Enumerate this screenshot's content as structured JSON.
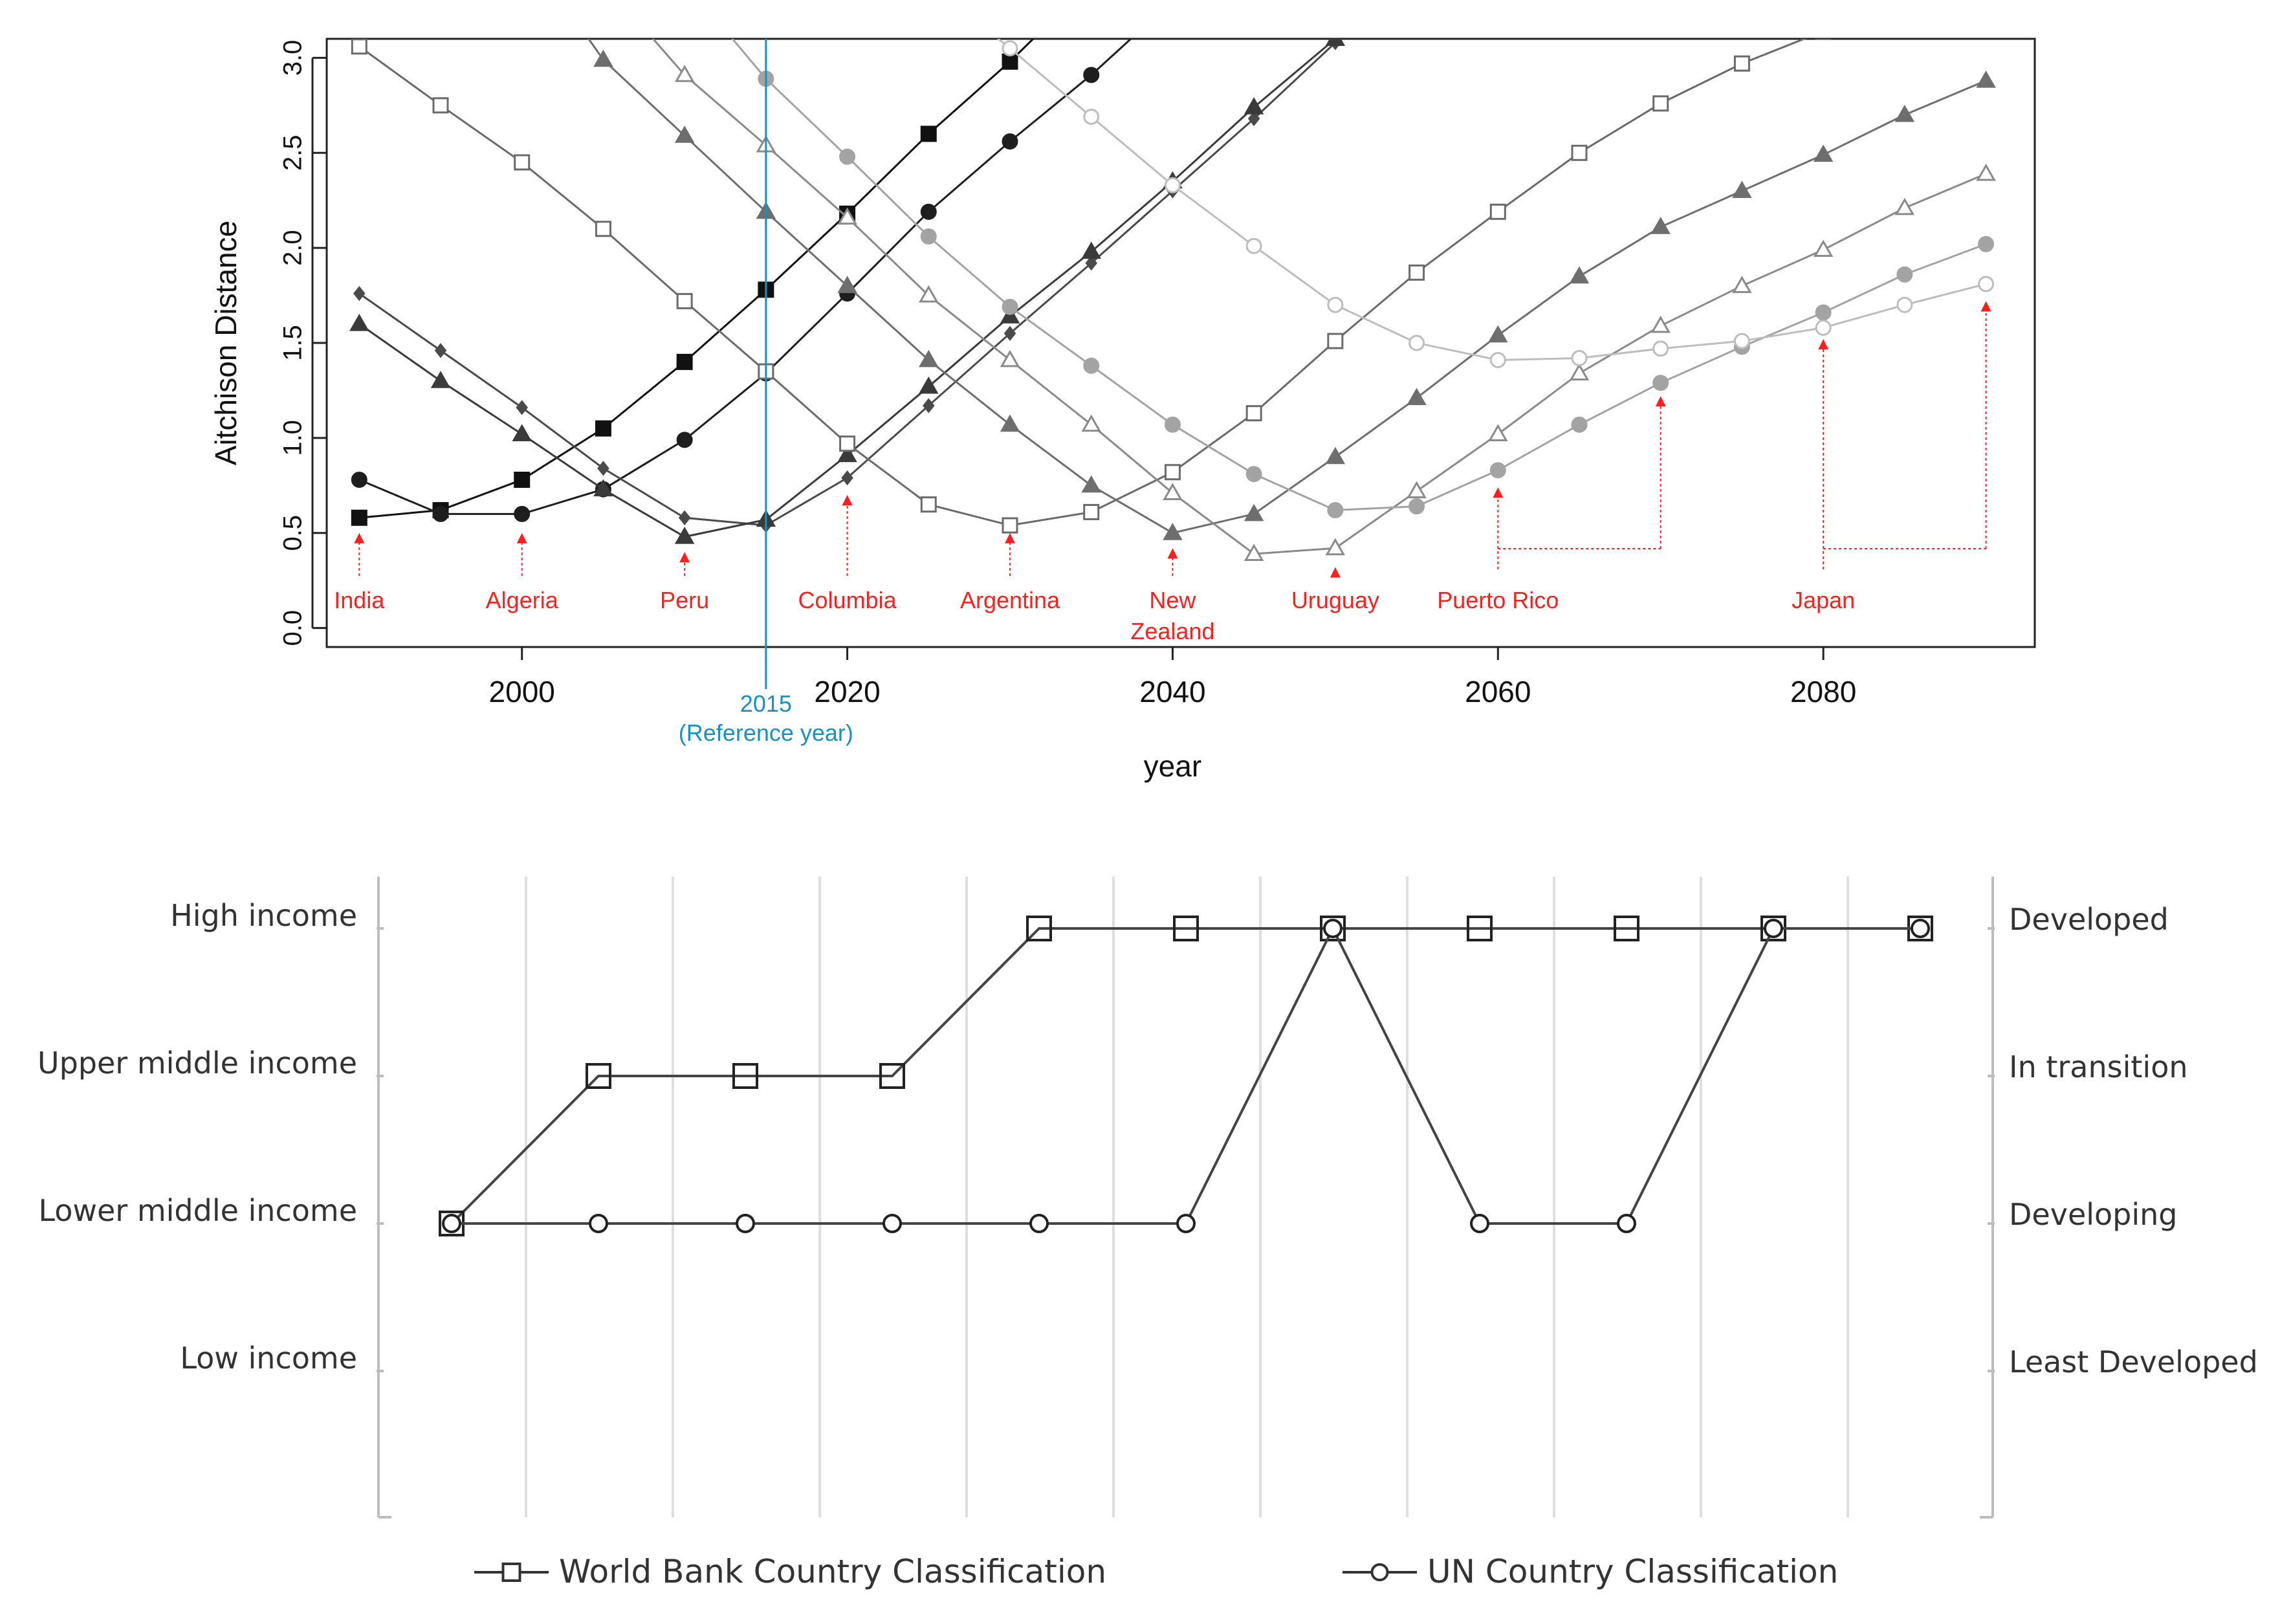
{
  "chart_data": [
    {
      "type": "line",
      "xlabel": "year",
      "ylabel": "Aitchison Distance",
      "xlim": [
        1988,
        2093
      ],
      "ylim": [
        -0.1,
        3.1
      ],
      "x_ticks": [
        "2000",
        "2020",
        "2040",
        "2060",
        "2080"
      ],
      "y_ticks": [
        "0.0",
        "0.5",
        "1.0",
        "1.5",
        "2.0",
        "2.5",
        "3.0"
      ],
      "reference_line": {
        "x": 2015,
        "label": "2015",
        "sublabel": "(Reference year)",
        "color": "#1a8fc4"
      },
      "x": [
        1990,
        1995,
        2000,
        2005,
        2010,
        2015,
        2020,
        2025,
        2030,
        2035,
        2040,
        2045,
        2050,
        2055,
        2060,
        2065,
        2070,
        2075,
        2080,
        2085,
        2090
      ],
      "series": [
        {
          "marker": "square-filled",
          "color": "#111111",
          "values": [
            0.58,
            0.62,
            0.78,
            1.05,
            1.4,
            1.78,
            2.18,
            2.6,
            2.98,
            3.4,
            null,
            null,
            null,
            null,
            null,
            null,
            null,
            null,
            null,
            null,
            null
          ]
        },
        {
          "marker": "circle-filled",
          "color": "#1e1e1e",
          "values": [
            0.78,
            0.6,
            0.6,
            0.73,
            0.99,
            1.34,
            1.76,
            2.19,
            2.56,
            2.91,
            3.3,
            null,
            null,
            null,
            null,
            null,
            null,
            null,
            null,
            null,
            null
          ]
        },
        {
          "marker": "diamond-filled",
          "color": "#4a4a4a",
          "values": [
            1.76,
            1.46,
            1.16,
            0.84,
            0.58,
            0.54,
            0.79,
            1.17,
            1.55,
            1.92,
            2.3,
            2.68,
            3.08,
            3.4,
            null,
            null,
            null,
            null,
            null,
            null,
            null
          ]
        },
        {
          "marker": "triangle-filled",
          "color": "#3a3a3a",
          "values": [
            1.6,
            1.3,
            1.02,
            0.73,
            0.48,
            0.57,
            0.91,
            1.27,
            1.64,
            1.98,
            2.35,
            2.74,
            3.1,
            3.4,
            null,
            null,
            null,
            null,
            null,
            null,
            null
          ]
        },
        {
          "marker": "square-open",
          "color": "#6a6a6a",
          "values": [
            3.06,
            2.75,
            2.45,
            2.1,
            1.72,
            1.35,
            0.97,
            0.65,
            0.54,
            0.61,
            0.82,
            1.13,
            1.51,
            1.87,
            2.19,
            2.5,
            2.76,
            2.97,
            3.14,
            null,
            null
          ]
        },
        {
          "marker": "triangle-filled",
          "color": "#6e6e6e",
          "values": [
            null,
            null,
            3.6,
            2.99,
            2.59,
            2.19,
            1.8,
            1.41,
            1.07,
            0.75,
            0.5,
            0.6,
            0.9,
            1.21,
            1.54,
            1.85,
            2.11,
            2.3,
            2.49,
            2.7,
            2.88
          ]
        },
        {
          "marker": "triangle-open",
          "color": "#8a8a8a",
          "values": [
            null,
            null,
            null,
            3.4,
            2.91,
            2.54,
            2.16,
            1.75,
            1.41,
            1.07,
            0.71,
            0.39,
            0.42,
            0.72,
            1.02,
            1.34,
            1.59,
            1.8,
            1.99,
            2.21,
            2.39
          ]
        },
        {
          "marker": "circle-filled",
          "color": "#a3a3a3",
          "values": [
            null,
            null,
            null,
            null,
            3.4,
            2.89,
            2.48,
            2.06,
            1.69,
            1.38,
            1.07,
            0.81,
            0.62,
            0.64,
            0.83,
            1.07,
            1.29,
            1.48,
            1.66,
            1.86,
            2.02
          ]
        },
        {
          "marker": "circle-open",
          "color": "#bdbdbd",
          "values": [
            null,
            null,
            null,
            null,
            null,
            null,
            null,
            3.4,
            3.05,
            2.69,
            2.33,
            2.01,
            1.7,
            1.5,
            1.41,
            1.42,
            1.47,
            1.51,
            1.58,
            1.7,
            1.81
          ]
        }
      ],
      "annotations": [
        {
          "label": "India",
          "x": 1990,
          "target": 0.5,
          "stem_x": 1990
        },
        {
          "label": "Algeria",
          "x": 2000,
          "target": 0.5,
          "stem_x": 2000
        },
        {
          "label": "Peru",
          "x": 2010,
          "target": 0.4,
          "stem_x": 2010
        },
        {
          "label": "Columbia",
          "x": 2020,
          "target": 0.7,
          "stem_x": 2020
        },
        {
          "label": "Argentina",
          "x": 2030,
          "target": 0.5,
          "stem_x": 2030
        },
        {
          "label": "New",
          "label2": "Zealand",
          "x": 2040,
          "target": 0.42,
          "stem_x": 2040
        },
        {
          "label": "Uruguay",
          "x": 2050,
          "target": 0.32,
          "stem_x": 2050
        },
        {
          "label": "Puerto Rico",
          "x": 2060,
          "target": 0.74,
          "stem_x": 2060,
          "bracket_to_x": 2070,
          "bracket_target": 1.22
        },
        {
          "label": "Japan",
          "x": 2080,
          "target": 1.52,
          "stem_x": 2080,
          "bracket_to_x": 2090,
          "bracket_target": 1.72
        }
      ],
      "annotation_color": "#ff1f1f"
    },
    {
      "type": "line",
      "left_categories": [
        "High income",
        "Upper middle income",
        "Lower middle income",
        "Low income"
      ],
      "right_categories": [
        "Developed",
        "In transition",
        "Developing",
        "Least Developed"
      ],
      "n_points": 11,
      "series": [
        {
          "name": "World Bank Country Classification",
          "marker": "square-open",
          "levels": [
            1,
            2,
            2,
            2,
            3,
            3,
            3,
            3,
            3,
            3,
            3
          ]
        },
        {
          "name": "UN Country Classification",
          "marker": "circle-open",
          "levels": [
            1,
            1,
            1,
            1,
            1,
            1,
            3,
            1,
            1,
            3,
            3
          ]
        }
      ],
      "grid": true,
      "legend_position": "bottom"
    }
  ]
}
